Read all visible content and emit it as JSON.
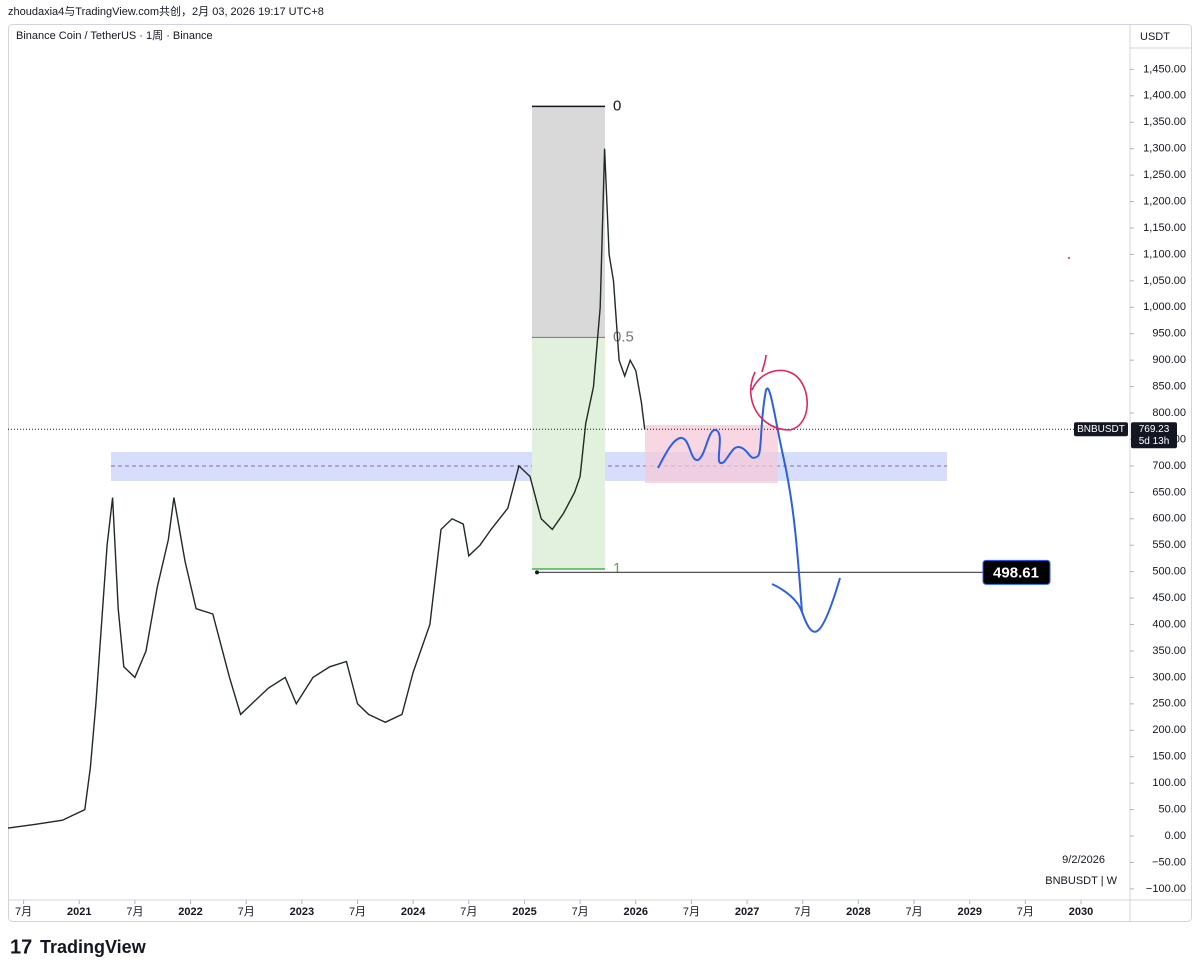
{
  "header": {
    "text": "zhoudaxia4与TradingView.com共创，2月 03, 2026 19:17 UTC+8"
  },
  "footer": {
    "brand": "TradingView"
  },
  "chart_data": {
    "type": "line",
    "title": "Binance Coin / TetherUS · 1周 · Binance",
    "axis_label": "USDT",
    "symbol_label": "BNBUSDT",
    "last_price": 769.23,
    "countdown": "5d 13h",
    "date_label": "9/2/2026",
    "interval_label": "BNBUSDT | W",
    "target_price": 498.61,
    "fib": [
      {
        "label": "0",
        "value": 1380
      },
      {
        "label": "0.5",
        "value": 943
      },
      {
        "label": "1",
        "value": 505
      }
    ],
    "series": [
      {
        "name": "BNBUSDT",
        "color": "#1e2a22",
        "x": [
          2020.36,
          2020.6,
          2020.85,
          2020.95,
          2021.05,
          2021.1,
          2021.15,
          2021.2,
          2021.25,
          2021.3,
          2021.35,
          2021.4,
          2021.5,
          2021.6,
          2021.7,
          2021.8,
          2021.85,
          2021.95,
          2022.05,
          2022.2,
          2022.35,
          2022.45,
          2022.55,
          2022.7,
          2022.85,
          2022.95,
          2023.1,
          2023.25,
          2023.4,
          2023.5,
          2023.6,
          2023.75,
          2023.9,
          2024.0,
          2024.15,
          2024.25,
          2024.35,
          2024.45,
          2024.5,
          2024.6,
          2024.7,
          2024.85,
          2024.95,
          2025.05,
          2025.15,
          2025.25,
          2025.35,
          2025.45,
          2025.5,
          2025.55,
          2025.62,
          2025.68,
          2025.72,
          2025.76,
          2025.8,
          2025.85,
          2025.9,
          2025.95,
          2026.0,
          2026.05,
          2026.08
        ],
        "values": [
          15,
          22,
          30,
          40,
          50,
          130,
          250,
          400,
          550,
          640,
          430,
          320,
          300,
          350,
          470,
          560,
          640,
          520,
          430,
          420,
          300,
          230,
          250,
          280,
          300,
          250,
          300,
          320,
          330,
          250,
          230,
          215,
          230,
          310,
          400,
          580,
          600,
          590,
          530,
          550,
          580,
          620,
          700,
          680,
          600,
          580,
          610,
          650,
          680,
          780,
          850,
          1000,
          1300,
          1100,
          1050,
          900,
          870,
          900,
          880,
          820,
          769.23
        ]
      }
    ],
    "xlim": [
      2020.36,
      2030.44
    ],
    "xticks": [
      {
        "value": 2020.5,
        "label": "7月"
      },
      2021,
      {
        "value": 2021.5,
        "label": "7月"
      },
      2022,
      {
        "value": 2022.5,
        "label": "7月"
      },
      2023,
      {
        "value": 2023.5,
        "label": "7月"
      },
      2024,
      {
        "value": 2024.5,
        "label": "7月"
      },
      2025,
      {
        "value": 2025.5,
        "label": "7月"
      },
      2026,
      {
        "value": 2026.5,
        "label": "7月"
      },
      2027,
      {
        "value": 2027.5,
        "label": "7月"
      },
      2028,
      {
        "value": 2028.5,
        "label": "7月"
      },
      2029,
      {
        "value": 2029.5,
        "label": "7月"
      },
      2030
    ],
    "ylim": [
      -121,
      1532
    ],
    "yticks": [
      {
        "value": -100,
        "label": "−100.00"
      },
      {
        "value": -50,
        "label": "−50.00"
      },
      {
        "value": 0,
        "label": "0.00"
      },
      {
        "value": 50,
        "label": "50.00"
      },
      {
        "value": 100,
        "label": "100.00"
      },
      {
        "value": 150,
        "label": "150.00"
      },
      {
        "value": 200,
        "label": "200.00"
      },
      {
        "value": 250,
        "label": "250.00"
      },
      {
        "value": 300,
        "label": "300.00"
      },
      {
        "value": 350,
        "label": "350.00"
      },
      {
        "value": 400,
        "label": "400.00"
      },
      {
        "value": 450,
        "label": "450.00"
      },
      {
        "value": 500,
        "label": "500.00"
      },
      {
        "value": 550,
        "label": "550.00"
      },
      {
        "value": 600,
        "label": "600.00"
      },
      {
        "value": 650,
        "label": "650.00"
      },
      {
        "value": 700,
        "label": "700.00"
      },
      {
        "value": 750,
        "label": "750.00"
      },
      {
        "value": 800,
        "label": "800.00"
      },
      {
        "value": 850,
        "label": "850.00"
      },
      {
        "value": 900,
        "label": "900.00"
      },
      {
        "value": 950,
        "label": "950.00"
      },
      {
        "value": 1000,
        "label": "1,000.00"
      },
      {
        "value": 1050,
        "label": "1,050.00"
      },
      {
        "value": 1100,
        "label": "1,100.00"
      },
      {
        "value": 1150,
        "label": "1,150.00"
      },
      {
        "value": 1200,
        "label": "1,200.00"
      },
      {
        "value": 1250,
        "label": "1,250.00"
      },
      {
        "value": 1300,
        "label": "1,300.00"
      },
      {
        "value": 1350,
        "label": "1,350.00"
      },
      {
        "value": 1400,
        "label": "1,400.00"
      },
      {
        "value": 1450,
        "label": "1,450.00"
      }
    ]
  }
}
